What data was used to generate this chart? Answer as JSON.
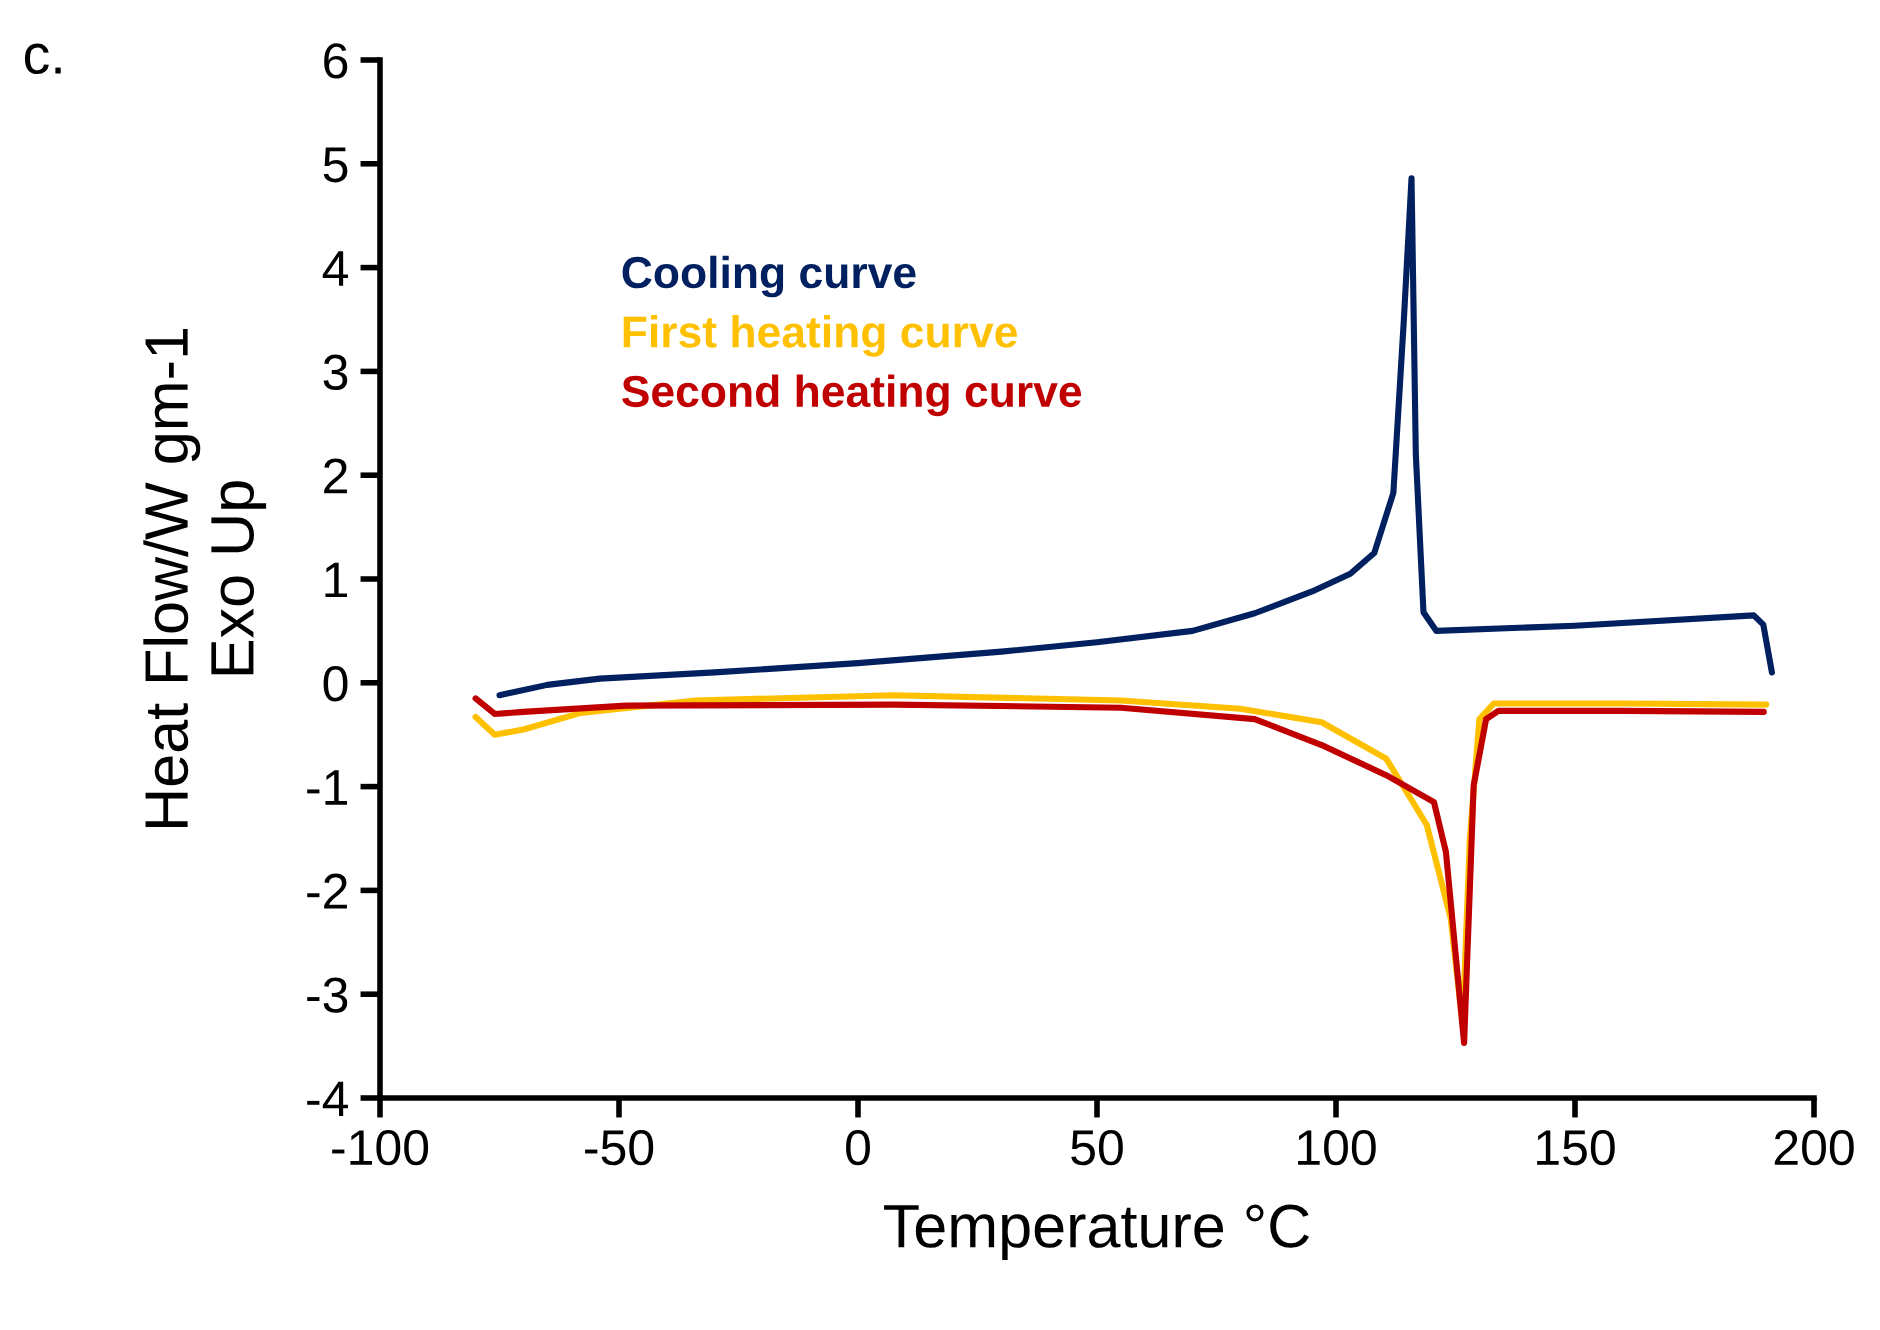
{
  "chart_data": {
    "type": "line",
    "xlabel": "Temperature °C",
    "ylabel": "Heat Flow/W gm-1\nExo Up",
    "annotations": [
      "c."
    ],
    "xlim": [
      -100,
      200
    ],
    "xticks": [
      -100,
      -50,
      0,
      50,
      100,
      150,
      200
    ],
    "ylim": [
      -4,
      6
    ],
    "yticks": [
      -4,
      -3,
      -2,
      -1,
      0,
      1,
      2,
      3,
      4,
      5,
      6
    ],
    "grid": false,
    "legend": "top left",
    "marker": "none",
    "line_style": "solid",
    "series": [
      {
        "name": "Cooling curve",
        "color": "#002060",
        "x": [
          -75,
          -65,
          -54,
          -30,
          0,
          30,
          50,
          70,
          83,
          95,
          103,
          108,
          112,
          114.2,
          115.8,
          116.7,
          118.3,
          121,
          150,
          187.4,
          189.4,
          191.2
        ],
        "values": [
          -0.12,
          -0.02,
          0.04,
          0.1,
          0.19,
          0.3,
          0.39,
          0.5,
          0.67,
          0.88,
          1.05,
          1.25,
          1.83,
          3.5,
          4.86,
          2.2,
          0.68,
          0.5,
          0.55,
          0.65,
          0.56,
          0.1
        ]
      },
      {
        "name": "First heating curve",
        "color": "#ffc000",
        "x": [
          -80,
          -76,
          -70,
          -58,
          -34,
          7.5,
          55,
          80,
          97,
          110.5,
          119,
          124,
          126.5,
          128,
          130,
          133,
          160,
          190
        ],
        "values": [
          -0.33,
          -0.5,
          -0.45,
          -0.29,
          -0.17,
          -0.12,
          -0.17,
          -0.25,
          -0.38,
          -0.73,
          -1.37,
          -2.27,
          -3.3,
          -1.5,
          -0.35,
          -0.2,
          -0.2,
          -0.21
        ]
      },
      {
        "name": "Second heating curve",
        "color": "#c00000",
        "x": [
          -80,
          -76,
          -70,
          -48.5,
          7.5,
          55,
          83,
          97,
          110.5,
          120.5,
          123,
          125,
          126.8,
          128.8,
          131.4,
          134,
          160,
          189.5
        ],
        "values": [
          -0.15,
          -0.3,
          -0.28,
          -0.22,
          -0.21,
          -0.24,
          -0.35,
          -0.6,
          -0.89,
          -1.15,
          -1.63,
          -2.6,
          -3.47,
          -0.99,
          -0.35,
          -0.27,
          -0.27,
          -0.28
        ]
      }
    ]
  }
}
